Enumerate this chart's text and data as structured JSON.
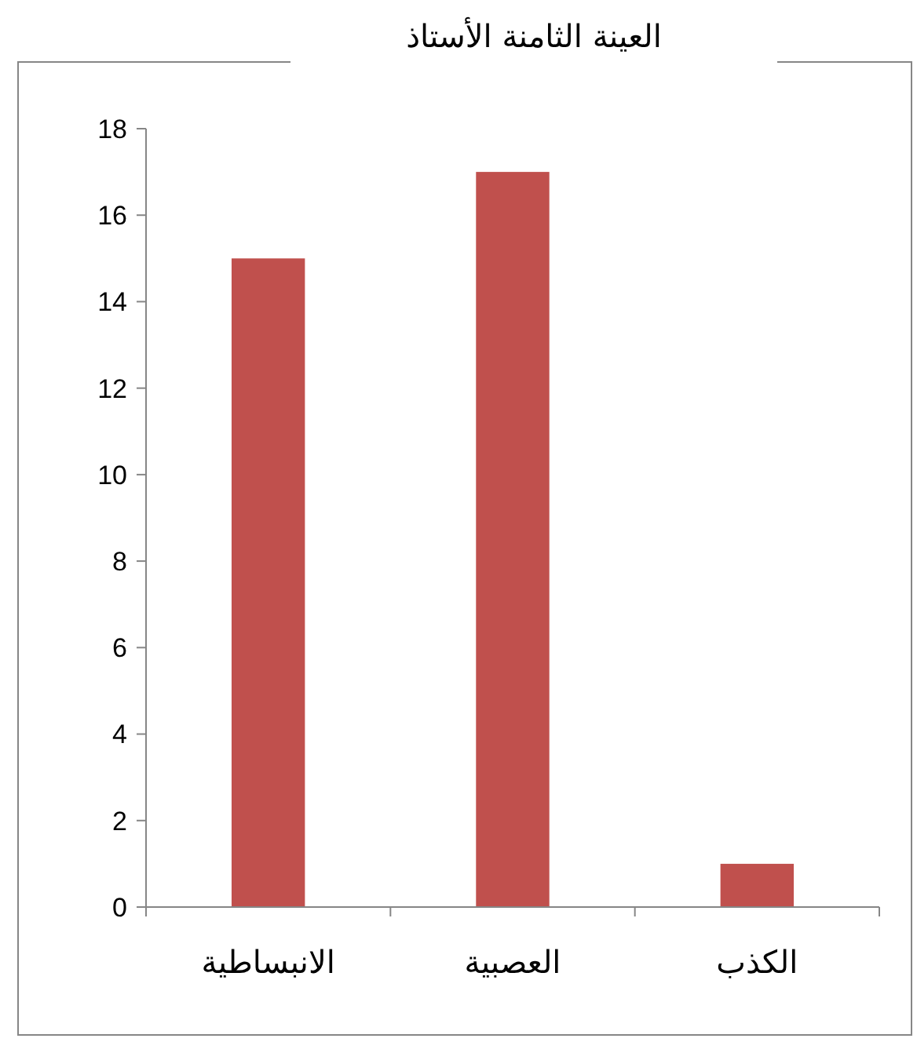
{
  "chart_data": {
    "type": "bar",
    "title": "العينة الثامنة الأستاذ",
    "categories": [
      "الانبساطية",
      "العصبية",
      "الكذب"
    ],
    "values": [
      15,
      17,
      1
    ],
    "color": "#c0504d",
    "ylim": [
      0,
      18
    ],
    "yticks": [
      0,
      2,
      4,
      6,
      8,
      10,
      12,
      14,
      16,
      18
    ],
    "grid": false
  }
}
